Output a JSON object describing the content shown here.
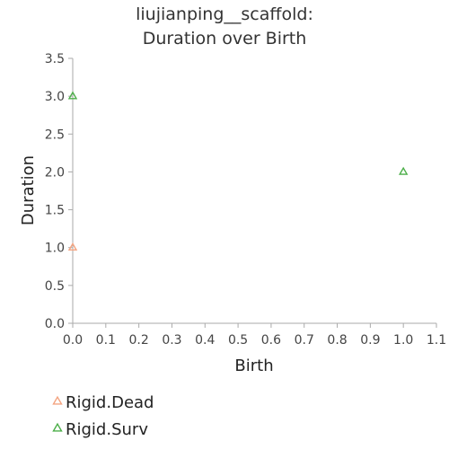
{
  "chart_data": {
    "type": "scatter",
    "title_lines": [
      "liujianping__scaffold:",
      "Duration over Birth"
    ],
    "xlabel": "Birth",
    "ylabel": "Duration",
    "xlim": [
      0.0,
      1.1
    ],
    "ylim": [
      0.0,
      3.5
    ],
    "x_ticks": [
      "0.0",
      "0.1",
      "0.2",
      "0.3",
      "0.4",
      "0.5",
      "0.6",
      "0.7",
      "0.8",
      "0.9",
      "1.0",
      "1.1"
    ],
    "y_ticks": [
      "0.0",
      "0.5",
      "1.0",
      "1.5",
      "2.0",
      "2.5",
      "3.0",
      "3.5"
    ],
    "grid": false,
    "legend_position": "bottom-left",
    "marker": "triangle-open",
    "series": [
      {
        "name": "Rigid.Dead",
        "color": "#f4a582",
        "points": [
          [
            0.0,
            1.0
          ]
        ]
      },
      {
        "name": "Rigid.Surv",
        "color": "#4daf4a",
        "points": [
          [
            0.0,
            3.0
          ],
          [
            1.0,
            2.0
          ]
        ]
      }
    ]
  }
}
